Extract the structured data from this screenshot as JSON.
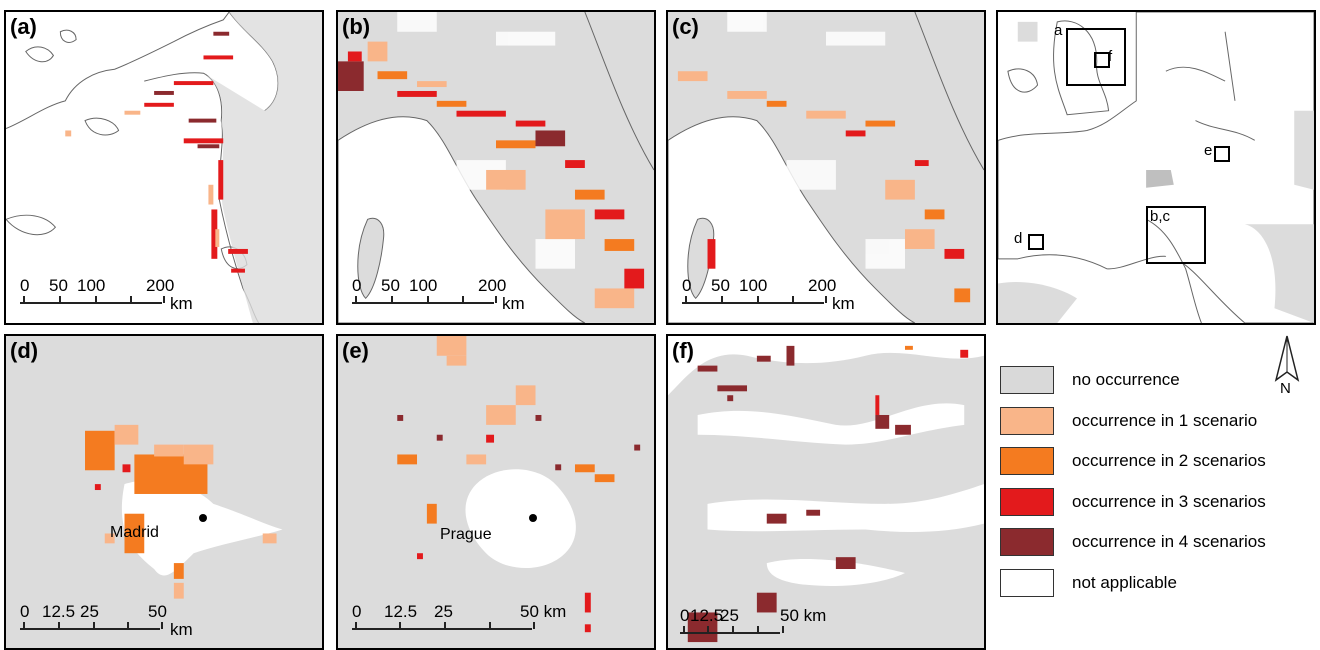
{
  "panels": {
    "a": {
      "label": "(a)",
      "scale": {
        "ticks": [
          "0",
          "50",
          "100",
          "200"
        ],
        "unit": "km"
      }
    },
    "b": {
      "label": "(b)",
      "scale": {
        "ticks": [
          "0",
          "50",
          "100",
          "200"
        ],
        "unit": "km"
      }
    },
    "c": {
      "label": "(c)",
      "scale": {
        "ticks": [
          "0",
          "50",
          "100",
          "200"
        ],
        "unit": "km"
      }
    },
    "d": {
      "label": "(d)",
      "city": "Madrid",
      "scale": {
        "ticks": [
          "0",
          "12.5",
          "25",
          "50"
        ],
        "unit": "km"
      }
    },
    "e": {
      "label": "(e)",
      "city": "Prague",
      "scale": {
        "ticks": [
          "0",
          "12.5",
          "25",
          "50 km"
        ],
        "unit": ""
      }
    },
    "f": {
      "label": "(f)",
      "scale": {
        "ticks": [
          "0",
          "12.5",
          "25",
          "50 km"
        ],
        "unit": ""
      }
    }
  },
  "overview": {
    "box_labels": [
      "a",
      "f",
      "e",
      "b,c",
      "d"
    ]
  },
  "legend": {
    "items": [
      {
        "label": "no occurrence",
        "color": "#d9d9d9"
      },
      {
        "label": "occurrence in 1 scenario",
        "color": "#f9b589"
      },
      {
        "label": "occurrence in 2 scenarios",
        "color": "#f47b20"
      },
      {
        "label": "occurrence in 3 scenarios",
        "color": "#e31a1c"
      },
      {
        "label": "occurrence in 4 scenarios",
        "color": "#8b2a2e"
      },
      {
        "label": "not applicable",
        "color": "#ffffff"
      }
    ]
  },
  "north_arrow": {
    "letter": "N"
  }
}
